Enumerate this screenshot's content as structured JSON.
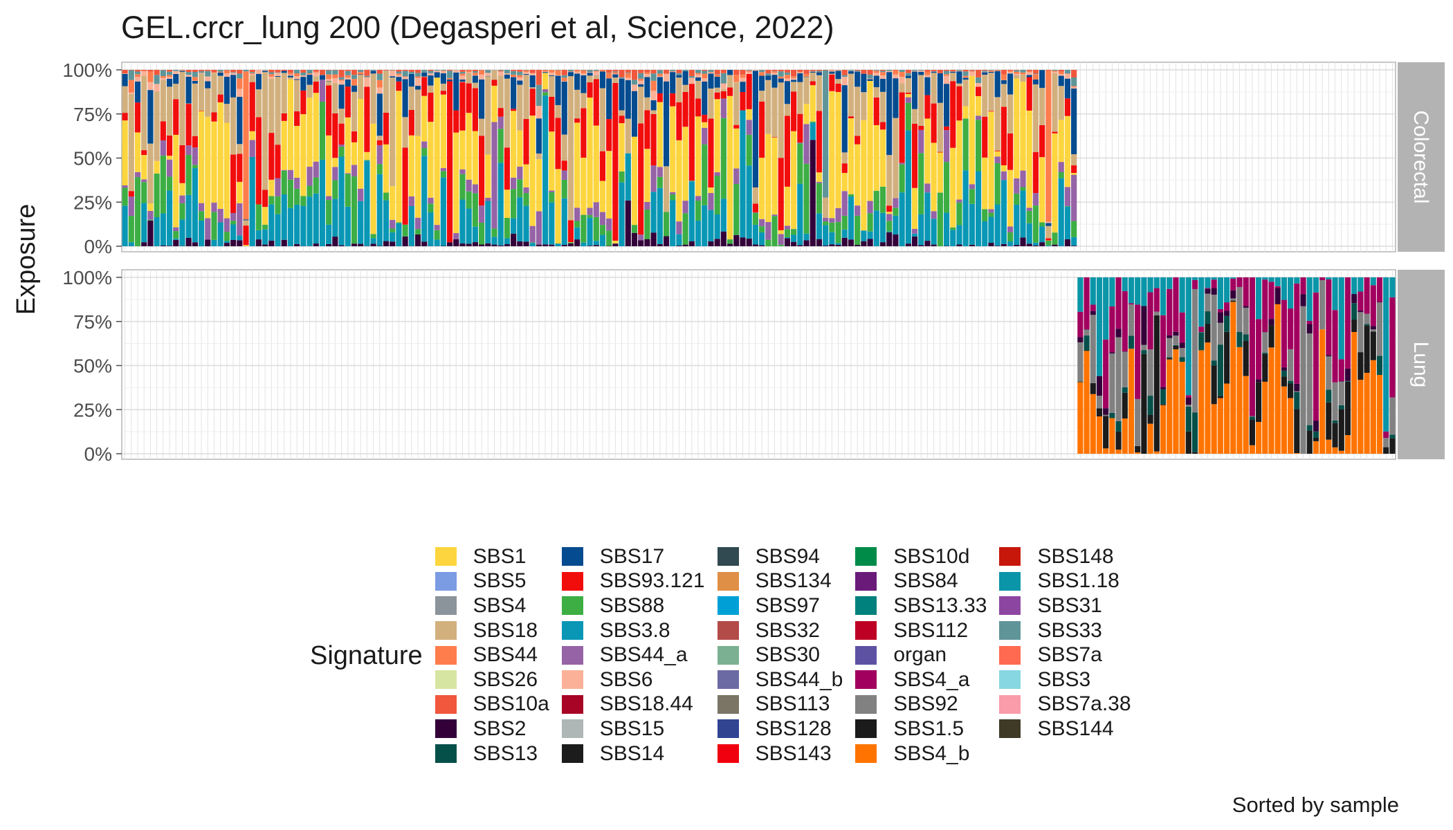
{
  "chart_data": {
    "type": "bar",
    "stacked": "fill",
    "title": "GEL.crcr_lung 200 (Degasperi et al, Science, 2022)",
    "ylabel": "Exposure",
    "caption": "Sorted by sample",
    "y_ticks": [
      "0%",
      "25%",
      "50%",
      "75%",
      "100%"
    ],
    "ylim": [
      0,
      1
    ],
    "grid": true,
    "legend_title": "Signature",
    "legend_position": "bottom",
    "n_samples": 200,
    "facets": [
      {
        "label": "Colorectal",
        "sample_start": 1,
        "sample_end": 150,
        "signatures": [
          {
            "name": "SBS2",
            "share": 0.02
          },
          {
            "name": "SBS3.8",
            "share": 0.15
          },
          {
            "name": "SBS88",
            "share": 0.1
          },
          {
            "name": "SBS44_a",
            "share": 0.04
          },
          {
            "name": "SBS1",
            "share": 0.3
          },
          {
            "name": "SBS93.121",
            "share": 0.15
          },
          {
            "name": "SBS18",
            "share": 0.14
          },
          {
            "name": "SBS17",
            "share": 0.06
          },
          {
            "name": "SBS6",
            "share": 0.01
          },
          {
            "name": "SBS44",
            "share": 0.01
          },
          {
            "name": "SBS33",
            "share": 0.01
          },
          {
            "name": "SBS10a",
            "share": 0.01
          }
        ]
      },
      {
        "label": "Lung",
        "sample_start": 151,
        "sample_end": 200,
        "signatures": [
          {
            "name": "SBS4_b",
            "share": 0.3
          },
          {
            "name": "SBS1.5",
            "share": 0.12
          },
          {
            "name": "SBS13",
            "share": 0.04
          },
          {
            "name": "SBS92",
            "share": 0.13
          },
          {
            "name": "SBS2",
            "share": 0.03
          },
          {
            "name": "SBS4_a",
            "share": 0.25
          },
          {
            "name": "SBS1.18",
            "share": 0.13
          }
        ]
      }
    ],
    "legend": [
      [
        {
          "name": "SBS1",
          "color": "#FDD53E"
        },
        {
          "name": "SBS5",
          "color": "#7B9BE3"
        },
        {
          "name": "SBS4",
          "color": "#8A949A"
        },
        {
          "name": "SBS18",
          "color": "#D2B07E"
        },
        {
          "name": "SBS44",
          "color": "#FF7D4D"
        },
        {
          "name": "SBS26",
          "color": "#D7E5A2"
        },
        {
          "name": "SBS10a",
          "color": "#F0573C"
        },
        {
          "name": "SBS2",
          "color": "#33003A"
        },
        {
          "name": "SBS13",
          "color": "#06504A"
        }
      ],
      [
        {
          "name": "SBS17",
          "color": "#044B8F"
        },
        {
          "name": "SBS93.121",
          "color": "#F20D0D"
        },
        {
          "name": "SBS88",
          "color": "#3DAE44"
        },
        {
          "name": "SBS3.8",
          "color": "#0997B5"
        },
        {
          "name": "SBS44_a",
          "color": "#9563A6"
        },
        {
          "name": "SBS6",
          "color": "#FBB198"
        },
        {
          "name": "SBS18.44",
          "color": "#A70426"
        },
        {
          "name": "SBS15",
          "color": "#AEB7B6"
        },
        {
          "name": "SBS14",
          "color": "#1C1C1C"
        }
      ],
      [
        {
          "name": "SBS94",
          "color": "#314951"
        },
        {
          "name": "SBS134",
          "color": "#E08F46"
        },
        {
          "name": "SBS97",
          "color": "#00A0D7"
        },
        {
          "name": "SBS32",
          "color": "#B34B49"
        },
        {
          "name": "SBS30",
          "color": "#7BB192"
        },
        {
          "name": "SBS44_b",
          "color": "#6B6AA3"
        },
        {
          "name": "SBS113",
          "color": "#7B7566"
        },
        {
          "name": "SBS128",
          "color": "#304492"
        },
        {
          "name": "SBS143",
          "color": "#F0000F"
        }
      ],
      [
        {
          "name": "SBS10d",
          "color": "#008B49"
        },
        {
          "name": "SBS84",
          "color": "#6A1B7A"
        },
        {
          "name": "SBS13.33",
          "color": "#00817D"
        },
        {
          "name": "SBS112",
          "color": "#BE0025"
        },
        {
          "name": "organ",
          "color": "#5D52A2"
        },
        {
          "name": "SBS4_a",
          "color": "#A2005F"
        },
        {
          "name": "SBS92",
          "color": "#818181"
        },
        {
          "name": "SBS1.5",
          "color": "#1B1B1B"
        },
        {
          "name": "SBS4_b",
          "color": "#FF7400"
        }
      ],
      [
        {
          "name": "SBS148",
          "color": "#C7170B"
        },
        {
          "name": "SBS1.18",
          "color": "#0B95A8"
        },
        {
          "name": "SBS31",
          "color": "#8C46A1"
        },
        {
          "name": "SBS33",
          "color": "#5F9599"
        },
        {
          "name": "SBS7a",
          "color": "#FF6A50"
        },
        {
          "name": "SBS3",
          "color": "#86D7E1"
        },
        {
          "name": "SBS7a.38",
          "color": "#FA9CAA"
        },
        {
          "name": "SBS144",
          "color": "#3F3A26"
        }
      ]
    ]
  }
}
